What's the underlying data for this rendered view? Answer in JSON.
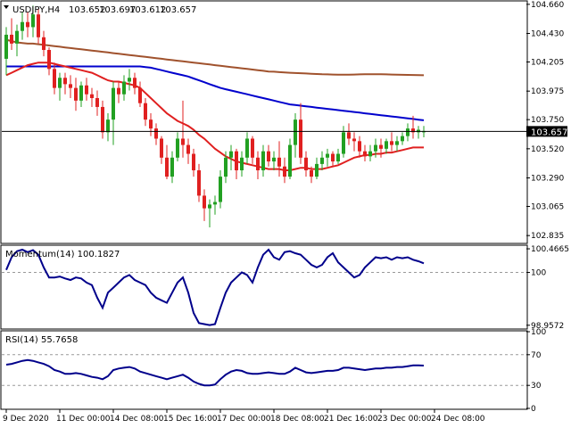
{
  "chart_data": [
    {
      "type": "candlestick",
      "title": "USDJPY,H4",
      "ohlc_header": [
        "103.652",
        "103.697",
        "103.612",
        "103.657"
      ],
      "current_price_label": "103.657",
      "current_price": 103.657,
      "ylim": [
        102.78,
        104.68
      ],
      "y_ticks": [
        102.835,
        103.065,
        103.29,
        103.52,
        103.75,
        103.975,
        104.205,
        104.43,
        104.66
      ],
      "y_tick_labels": [
        "102.835",
        "103.065",
        "103.290",
        "103.520",
        "103.750",
        "103.975",
        "104.205",
        "104.430",
        "104.660"
      ],
      "x_labels": [
        "9 Dec 2020",
        "11 Dec 00:00",
        "14 Dec 08:00",
        "15 Dec 16:00",
        "17 Dec 00:00",
        "18 Dec 08:00",
        "21 Dec 16:00",
        "23 Dec 00:00",
        "24 Dec 08:00"
      ],
      "x_label_bar_index": [
        0,
        10,
        20,
        30,
        40,
        50,
        60,
        70,
        80
      ],
      "candles": [
        [
          104.23,
          104.48,
          104.1,
          104.42
        ],
        [
          104.42,
          104.55,
          104.3,
          104.35
        ],
        [
          104.35,
          104.5,
          104.25,
          104.45
        ],
        [
          104.45,
          104.6,
          104.38,
          104.52
        ],
        [
          104.52,
          104.6,
          104.4,
          104.48
        ],
        [
          104.48,
          104.65,
          104.4,
          104.58
        ],
        [
          104.58,
          104.62,
          104.35,
          104.4
        ],
        [
          104.4,
          104.45,
          104.25,
          104.3
        ],
        [
          104.3,
          104.32,
          104.1,
          104.15
        ],
        [
          104.15,
          104.2,
          103.95,
          104.0
        ],
        [
          104.0,
          104.12,
          103.9,
          104.08
        ],
        [
          104.08,
          104.12,
          103.95,
          104.03
        ],
        [
          104.03,
          104.1,
          103.92,
          104.0
        ],
        [
          104.0,
          104.08,
          103.82,
          103.9
        ],
        [
          103.9,
          104.05,
          103.85,
          104.02
        ],
        [
          104.02,
          104.08,
          103.9,
          103.95
        ],
        [
          103.95,
          104.0,
          103.85,
          103.92
        ],
        [
          103.92,
          103.98,
          103.78,
          103.85
        ],
        [
          103.85,
          103.9,
          103.6,
          103.65
        ],
        [
          103.65,
          103.8,
          103.58,
          103.75
        ],
        [
          103.75,
          104.05,
          103.55,
          104.0
        ],
        [
          104.0,
          104.05,
          103.88,
          103.95
        ],
        [
          103.95,
          104.1,
          103.9,
          104.05
        ],
        [
          104.05,
          104.15,
          103.98,
          104.08
        ],
        [
          104.08,
          104.12,
          103.95,
          104.0
        ],
        [
          104.0,
          104.05,
          103.85,
          103.88
        ],
        [
          103.88,
          103.92,
          103.7,
          103.75
        ],
        [
          103.75,
          103.8,
          103.62,
          103.68
        ],
        [
          103.68,
          103.72,
          103.55,
          103.6
        ],
        [
          103.6,
          103.62,
          103.4,
          103.45
        ],
        [
          103.45,
          103.55,
          103.28,
          103.3
        ],
        [
          103.3,
          103.5,
          103.25,
          103.45
        ],
        [
          103.45,
          103.65,
          103.42,
          103.6
        ],
        [
          103.6,
          103.9,
          103.45,
          103.55
        ],
        [
          103.55,
          103.6,
          103.4,
          103.48
        ],
        [
          103.48,
          103.52,
          103.3,
          103.35
        ],
        [
          103.35,
          103.4,
          103.1,
          103.15
        ],
        [
          103.15,
          103.2,
          102.95,
          103.05
        ],
        [
          103.05,
          103.12,
          102.9,
          103.08
        ],
        [
          103.08,
          103.15,
          103.0,
          103.1
        ],
        [
          103.1,
          103.35,
          103.05,
          103.3
        ],
        [
          103.3,
          103.5,
          103.25,
          103.45
        ],
        [
          103.45,
          103.55,
          103.35,
          103.5
        ],
        [
          103.5,
          103.52,
          103.28,
          103.35
        ],
        [
          103.35,
          103.5,
          103.3,
          103.45
        ],
        [
          103.45,
          103.65,
          103.4,
          103.6
        ],
        [
          103.6,
          103.62,
          103.4,
          103.45
        ],
        [
          103.45,
          103.5,
          103.28,
          103.35
        ],
        [
          103.35,
          103.55,
          103.3,
          103.5
        ],
        [
          103.5,
          103.55,
          103.38,
          103.42
        ],
        [
          103.42,
          103.5,
          103.35,
          103.45
        ],
        [
          103.45,
          103.58,
          103.3,
          103.38
        ],
        [
          103.38,
          103.45,
          103.25,
          103.3
        ],
        [
          103.3,
          103.6,
          103.28,
          103.55
        ],
        [
          103.55,
          103.8,
          103.45,
          103.75
        ],
        [
          103.75,
          103.88,
          103.4,
          103.45
        ],
        [
          103.45,
          103.5,
          103.3,
          103.35
        ],
        [
          103.35,
          103.38,
          103.25,
          103.3
        ],
        [
          103.3,
          103.45,
          103.28,
          103.4
        ],
        [
          103.4,
          103.5,
          103.35,
          103.45
        ],
        [
          103.45,
          103.52,
          103.38,
          103.48
        ],
        [
          103.48,
          103.5,
          103.38,
          103.42
        ],
        [
          103.42,
          103.52,
          103.4,
          103.48
        ],
        [
          103.48,
          103.7,
          103.45,
          103.65
        ],
        [
          103.65,
          103.72,
          103.55,
          103.6
        ],
        [
          103.6,
          103.65,
          103.5,
          103.58
        ],
        [
          103.58,
          103.62,
          103.45,
          103.5
        ],
        [
          103.5,
          103.55,
          103.42,
          103.46
        ],
        [
          103.46,
          103.55,
          103.42,
          103.5
        ],
        [
          103.5,
          103.6,
          103.45,
          103.55
        ],
        [
          103.55,
          103.6,
          103.45,
          103.52
        ],
        [
          103.52,
          103.6,
          103.48,
          103.58
        ],
        [
          103.58,
          103.65,
          103.5,
          103.55
        ],
        [
          103.55,
          103.62,
          103.5,
          103.58
        ],
        [
          103.58,
          103.65,
          103.55,
          103.62
        ],
        [
          103.62,
          103.72,
          103.58,
          103.68
        ],
        [
          103.68,
          103.78,
          103.6,
          103.65
        ],
        [
          103.65,
          103.7,
          103.6,
          103.67
        ],
        [
          103.65,
          103.7,
          103.61,
          103.66
        ]
      ],
      "moving_averages": [
        {
          "color": "#a0522d",
          "values": [
            104.38,
            104.37,
            104.36,
            104.355,
            104.35,
            104.35,
            104.345,
            104.34,
            104.335,
            104.33,
            104.325,
            104.32,
            104.315,
            104.31,
            104.305,
            104.3,
            104.295,
            104.29,
            104.285,
            104.28,
            104.275,
            104.27,
            104.265,
            104.26,
            104.255,
            104.25,
            104.245,
            104.24,
            104.235,
            104.23,
            104.225,
            104.22,
            104.215,
            104.21,
            104.205,
            104.2,
            104.195,
            104.19,
            104.185,
            104.18,
            104.175,
            104.17,
            104.165,
            104.16,
            104.155,
            104.15,
            104.145,
            104.14,
            104.135,
            104.13,
            104.128,
            104.125,
            104.122,
            104.12,
            104.118,
            104.116,
            104.114,
            104.112,
            104.11,
            104.108,
            104.107,
            104.106,
            104.105,
            104.105,
            104.105,
            104.106,
            104.107,
            104.108,
            104.108,
            104.108,
            104.108,
            104.107,
            104.106,
            104.105,
            104.104,
            104.103,
            104.102,
            104.101,
            104.1
          ]
        },
        {
          "color": "#0000cd",
          "values": [
            104.17,
            104.17,
            104.17,
            104.17,
            104.17,
            104.17,
            104.17,
            104.17,
            104.17,
            104.17,
            104.17,
            104.17,
            104.17,
            104.17,
            104.17,
            104.17,
            104.17,
            104.17,
            104.17,
            104.17,
            104.17,
            104.17,
            104.17,
            104.17,
            104.17,
            104.17,
            104.165,
            104.16,
            104.15,
            104.14,
            104.13,
            104.12,
            104.11,
            104.1,
            104.09,
            104.075,
            104.06,
            104.045,
            104.03,
            104.015,
            104.0,
            103.99,
            103.98,
            103.97,
            103.96,
            103.95,
            103.94,
            103.93,
            103.92,
            103.91,
            103.9,
            103.89,
            103.88,
            103.87,
            103.865,
            103.86,
            103.855,
            103.85,
            103.845,
            103.84,
            103.835,
            103.83,
            103.825,
            103.82,
            103.815,
            103.81,
            103.805,
            103.8,
            103.795,
            103.79,
            103.785,
            103.78,
            103.775,
            103.77,
            103.765,
            103.76,
            103.755,
            103.75,
            103.745
          ]
        },
        {
          "color": "#e02020",
          "values": [
            104.1,
            104.12,
            104.14,
            104.16,
            104.18,
            104.19,
            104.2,
            104.2,
            104.2,
            104.19,
            104.18,
            104.17,
            104.16,
            104.15,
            104.14,
            104.13,
            104.12,
            104.1,
            104.08,
            104.06,
            104.05,
            104.05,
            104.04,
            104.03,
            104.02,
            104.0,
            103.96,
            103.92,
            103.88,
            103.84,
            103.8,
            103.77,
            103.74,
            103.72,
            103.7,
            103.67,
            103.63,
            103.6,
            103.56,
            103.52,
            103.49,
            103.46,
            103.44,
            103.42,
            103.41,
            103.4,
            103.39,
            103.38,
            103.37,
            103.36,
            103.36,
            103.36,
            103.35,
            103.35,
            103.36,
            103.37,
            103.37,
            103.36,
            103.36,
            103.36,
            103.37,
            103.38,
            103.39,
            103.41,
            103.43,
            103.45,
            103.46,
            103.47,
            103.47,
            103.48,
            103.48,
            103.49,
            103.49,
            103.5,
            103.51,
            103.52,
            103.53,
            103.53,
            103.53
          ]
        }
      ]
    },
    {
      "type": "line",
      "title": "Momentum(14) 100.1827",
      "ylim": [
        98.9,
        100.52
      ],
      "y_ticks": [
        98.9572,
        100,
        100.4665
      ],
      "y_tick_labels": [
        "98.9572",
        "100",
        "100.4665"
      ],
      "reference_level": 100,
      "series": [
        {
          "color": "#00008b",
          "values": [
            100.05,
            100.3,
            100.42,
            100.45,
            100.4,
            100.44,
            100.35,
            100.1,
            99.9,
            99.9,
            99.92,
            99.88,
            99.85,
            99.9,
            99.88,
            99.8,
            99.75,
            99.5,
            99.3,
            99.6,
            99.7,
            99.8,
            99.9,
            99.95,
            99.85,
            99.8,
            99.75,
            99.6,
            99.5,
            99.45,
            99.4,
            99.6,
            99.8,
            99.9,
            99.6,
            99.2,
            99.0,
            98.98,
            98.96,
            98.98,
            99.3,
            99.6,
            99.8,
            99.9,
            100.0,
            99.95,
            99.8,
            100.1,
            100.35,
            100.45,
            100.3,
            100.25,
            100.4,
            100.42,
            100.38,
            100.35,
            100.25,
            100.15,
            100.1,
            100.15,
            100.3,
            100.38,
            100.2,
            100.1,
            100.0,
            99.9,
            99.95,
            100.1,
            100.2,
            100.3,
            100.28,
            100.3,
            100.25,
            100.3,
            100.28,
            100.3,
            100.25,
            100.22,
            100.18
          ]
        }
      ]
    },
    {
      "type": "line",
      "title": "RSI(14) 55.7658",
      "ylim": [
        0,
        100
      ],
      "y_ticks": [
        0,
        30,
        70,
        100
      ],
      "y_tick_labels": [
        "0",
        "30",
        "70",
        "100"
      ],
      "levels": [
        30,
        70
      ],
      "series": [
        {
          "color": "#00008b",
          "values": [
            57,
            58,
            60,
            62,
            63,
            62,
            60,
            58,
            55,
            50,
            48,
            45,
            45,
            46,
            45,
            43,
            41,
            40,
            38,
            42,
            50,
            52,
            53,
            54,
            52,
            48,
            46,
            44,
            42,
            40,
            38,
            40,
            42,
            44,
            40,
            35,
            32,
            30,
            30,
            31,
            38,
            44,
            48,
            50,
            49,
            46,
            45,
            45,
            46,
            47,
            46,
            45,
            45,
            48,
            53,
            50,
            47,
            46,
            47,
            48,
            49,
            49,
            50,
            53,
            53,
            52,
            51,
            50,
            51,
            52,
            52,
            53,
            53,
            54,
            54,
            55,
            56,
            56,
            55.8
          ]
        }
      ]
    }
  ]
}
